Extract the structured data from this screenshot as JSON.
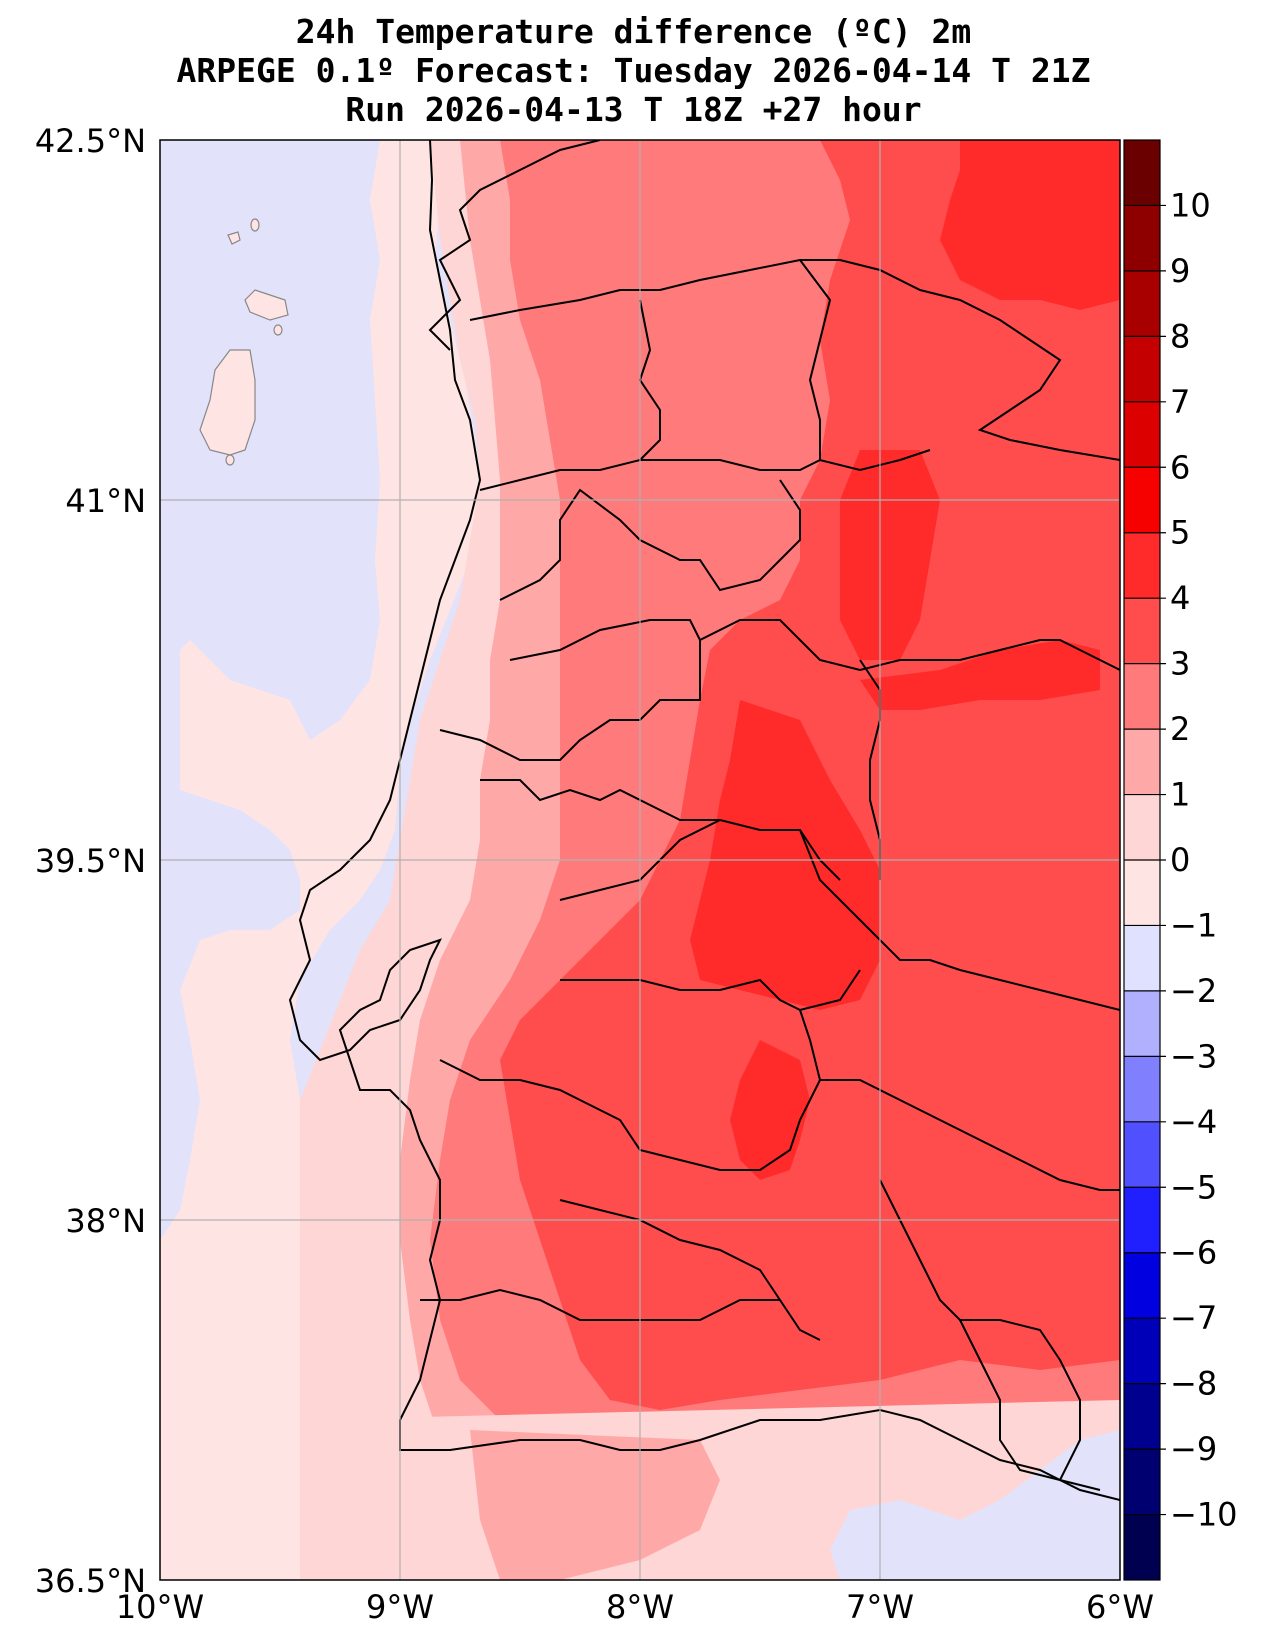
{
  "title": {
    "line1": "24h Temperature difference (ºC) 2m",
    "line2": "ARPEGE 0.1º Forecast: Tuesday 2026-04-14 T 21Z",
    "line3": "Run 2026-04-13 T 18Z +27 hour"
  },
  "axes": {
    "lat_labels": [
      "42.5°N",
      "41°N",
      "39.5°N",
      "38°N",
      "36.5°N"
    ],
    "lon_labels": [
      "10°W",
      "9°W",
      "8°W",
      "7°W",
      "6°W"
    ],
    "lat_range": [
      36.5,
      42.5
    ],
    "lon_range": [
      -10,
      -6
    ],
    "grid": true
  },
  "colorbar": {
    "labels": [
      "10",
      "9",
      "8",
      "7",
      "6",
      "5",
      "4",
      "3",
      "2",
      "1",
      "0",
      "−1",
      "−2",
      "−3",
      "−4",
      "−5",
      "−6",
      "−7",
      "−8",
      "−9",
      "−10"
    ],
    "colors_top_to_bottom": [
      "#6b0000",
      "#8e0000",
      "#a80000",
      "#c40000",
      "#dc0000",
      "#f60000",
      "#ff2a2a",
      "#ff4d4d",
      "#ff7a7a",
      "#ffa8a8",
      "#ffd6d6",
      "#ffe4e4",
      "#e0e0ff",
      "#b0b0ff",
      "#8080ff",
      "#5050ff",
      "#2020ff",
      "#0000e0",
      "#0000b8",
      "#00008e",
      "#000070",
      "#000050"
    ]
  }
}
